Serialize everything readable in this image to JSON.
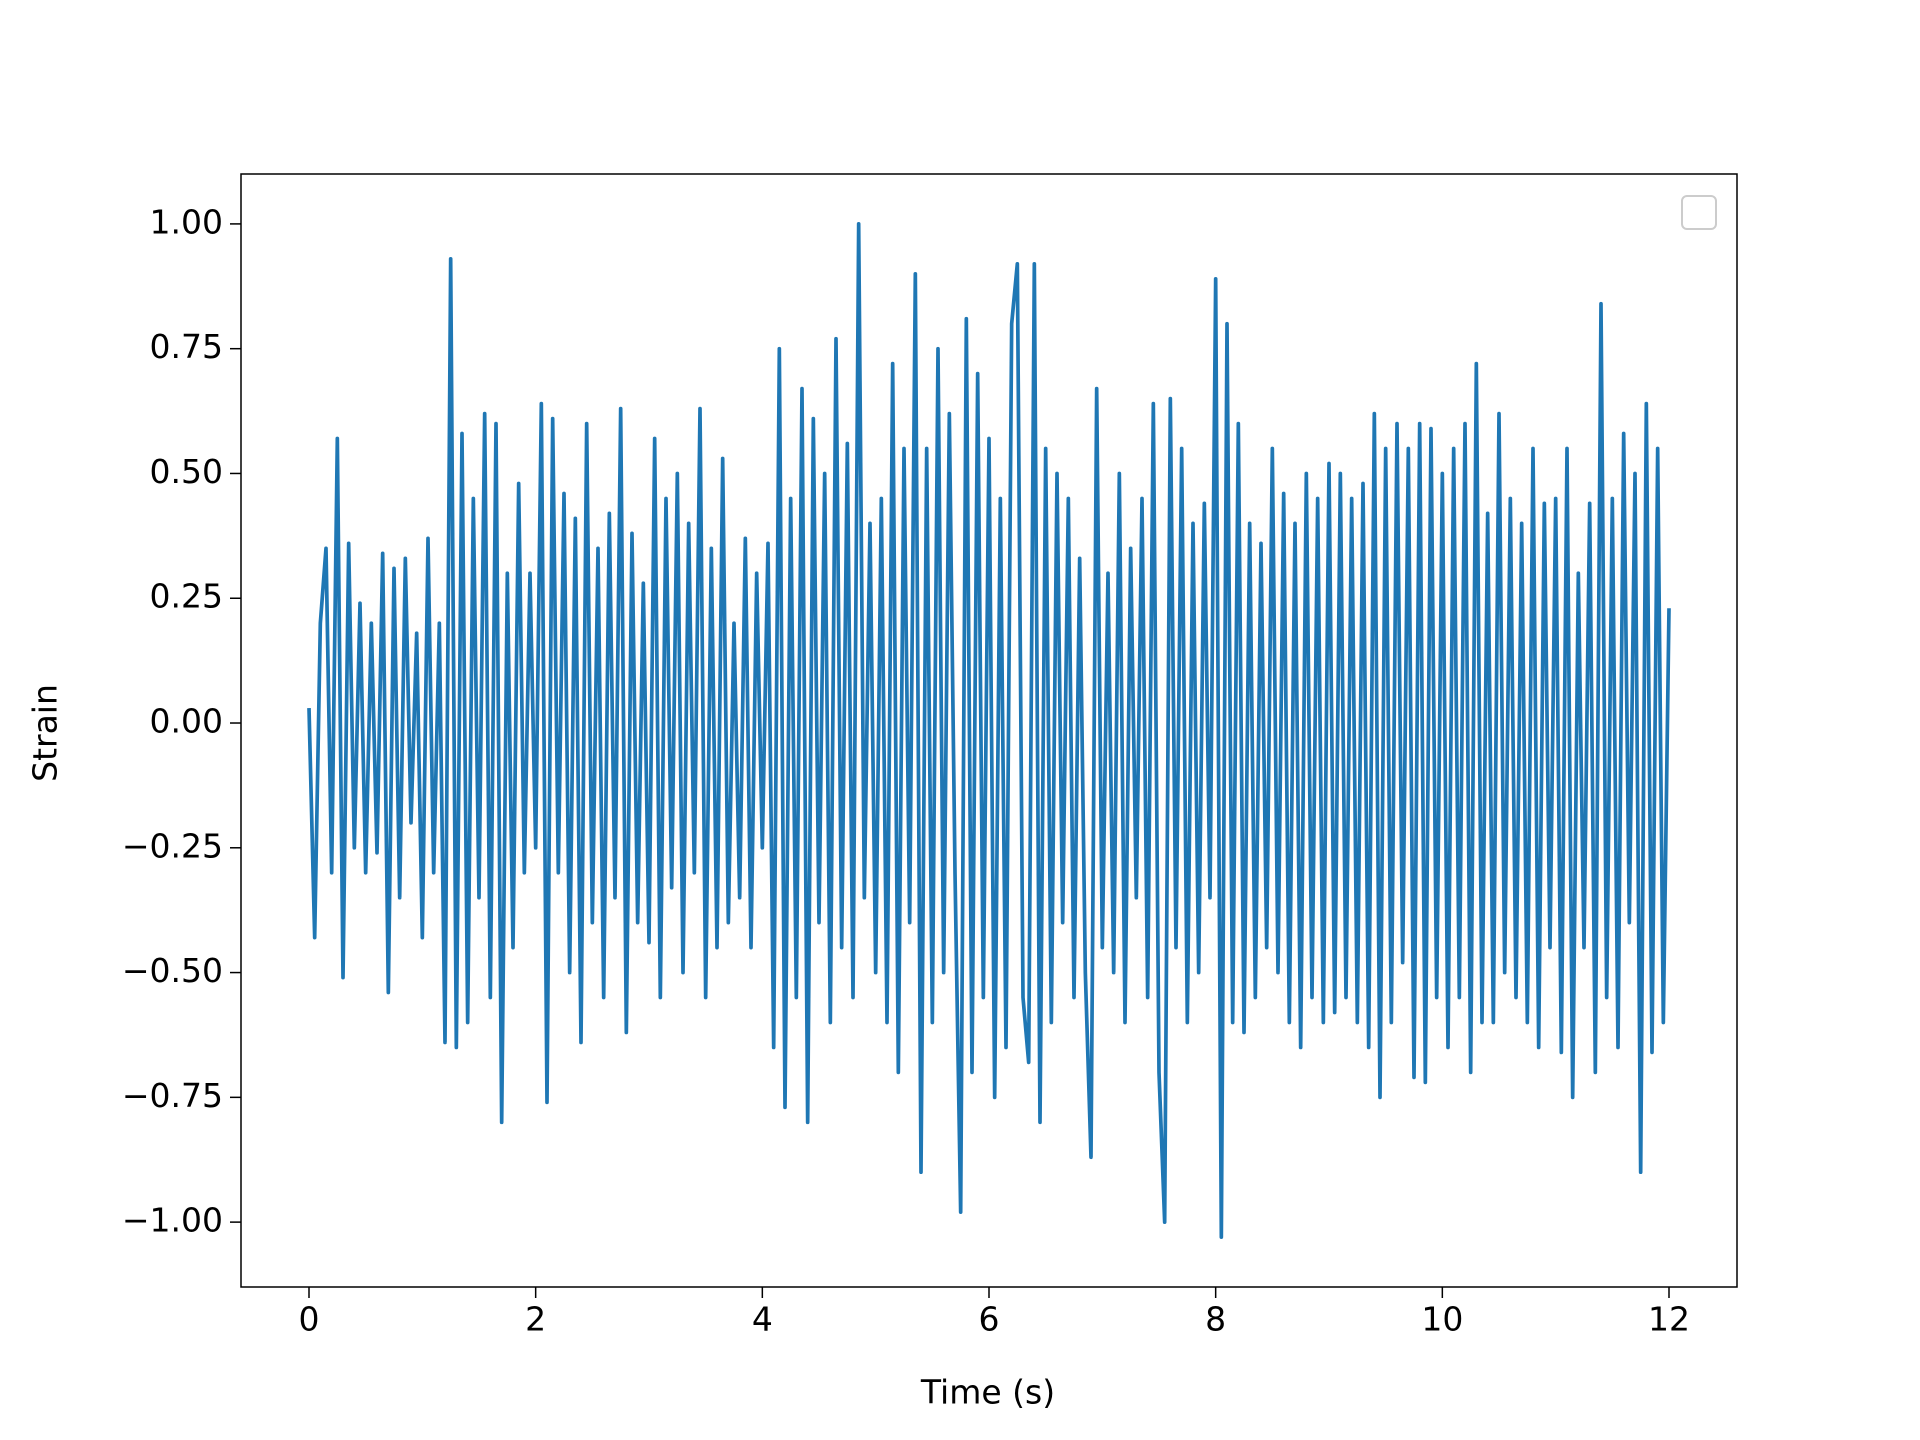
{
  "chart_data": {
    "type": "line",
    "xlabel": "Time (s)",
    "ylabel": "Strain",
    "xlim": [
      -0.6,
      12.6
    ],
    "ylim": [
      -1.13,
      1.1
    ],
    "xticks": [
      0,
      2,
      4,
      6,
      8,
      10,
      12
    ],
    "yticks": [
      {
        "value": -1,
        "label": "−1.00"
      },
      {
        "value": -0.75,
        "label": "−0.75"
      },
      {
        "value": -0.5,
        "label": "−0.50"
      },
      {
        "value": -0.25,
        "label": "−0.25"
      },
      {
        "value": 0,
        "label": "0.00"
      },
      {
        "value": 0.25,
        "label": "0.25"
      },
      {
        "value": 0.5,
        "label": "0.50"
      },
      {
        "value": 0.75,
        "label": "0.75"
      },
      {
        "value": 1,
        "label": "1.00"
      }
    ],
    "legend": "upper right",
    "x": [
      0,
      0.05,
      0.1,
      0.15,
      0.2,
      0.25,
      0.3,
      0.35,
      0.4,
      0.45,
      0.5,
      0.55,
      0.6,
      0.65,
      0.7,
      0.75,
      0.8,
      0.85,
      0.9,
      0.95,
      1,
      1.05,
      1.1,
      1.15,
      1.2,
      1.25,
      1.3,
      1.35,
      1.4,
      1.45,
      1.5,
      1.55,
      1.6,
      1.65,
      1.7,
      1.75,
      1.8,
      1.85,
      1.9,
      1.95,
      2,
      2.05,
      2.1,
      2.15,
      2.2,
      2.25,
      2.3,
      2.35,
      2.4,
      2.45,
      2.5,
      2.55,
      2.6,
      2.65,
      2.7,
      2.75,
      2.8,
      2.85,
      2.9,
      2.95,
      3,
      3.05,
      3.1,
      3.15,
      3.2,
      3.25,
      3.3,
      3.35,
      3.4,
      3.45,
      3.5,
      3.55,
      3.6,
      3.65,
      3.7,
      3.75,
      3.8,
      3.85,
      3.9,
      3.95,
      4,
      4.05,
      4.1,
      4.15,
      4.2,
      4.25,
      4.3,
      4.35,
      4.4,
      4.45,
      4.5,
      4.55,
      4.6,
      4.65,
      4.7,
      4.75,
      4.8,
      4.85,
      4.9,
      4.95,
      5,
      5.05,
      5.1,
      5.15,
      5.2,
      5.25,
      5.3,
      5.35,
      5.4,
      5.45,
      5.5,
      5.55,
      5.6,
      5.65,
      5.7,
      5.75,
      5.8,
      5.85,
      5.9,
      5.95,
      6,
      6.05,
      6.1,
      6.15,
      6.2,
      6.25,
      6.3,
      6.35,
      6.4,
      6.45,
      6.5,
      6.55,
      6.6,
      6.65,
      6.7,
      6.75,
      6.8,
      6.85,
      6.9,
      6.95,
      7,
      7.05,
      7.1,
      7.15,
      7.2,
      7.25,
      7.3,
      7.35,
      7.4,
      7.45,
      7.5,
      7.55,
      7.6,
      7.65,
      7.7,
      7.75,
      7.8,
      7.85,
      7.9,
      7.95,
      8,
      8.05,
      8.1,
      8.15,
      8.2,
      8.25,
      8.3,
      8.35,
      8.4,
      8.45,
      8.5,
      8.55,
      8.6,
      8.65,
      8.7,
      8.75,
      8.8,
      8.85,
      8.9,
      8.95,
      9,
      9.05,
      9.1,
      9.15,
      9.2,
      9.25,
      9.3,
      9.35,
      9.4,
      9.45,
      9.5,
      9.55,
      9.6,
      9.65,
      9.7,
      9.75,
      9.8,
      9.85,
      9.9,
      9.95,
      10,
      10.05,
      10.1,
      10.15,
      10.2,
      10.25,
      10.3,
      10.35,
      10.4,
      10.45,
      10.5,
      10.55,
      10.6,
      10.65,
      10.7,
      10.75,
      10.8,
      10.85,
      10.9,
      10.95,
      11,
      11.05,
      11.1,
      11.15,
      11.2,
      11.25,
      11.3,
      11.35,
      11.4,
      11.45,
      11.5,
      11.55,
      11.6,
      11.65,
      11.7,
      11.75,
      11.8,
      11.85,
      11.9,
      11.95,
      12
    ],
    "series": [
      {
        "color": "#1f77b4",
        "values": [
          0.03,
          -0.43,
          0.2,
          0.35,
          -0.3,
          0.57,
          -0.51,
          0.36,
          -0.25,
          0.24,
          -0.3,
          0.2,
          -0.26,
          0.34,
          -0.54,
          0.31,
          -0.35,
          0.33,
          -0.2,
          0.18,
          -0.43,
          0.37,
          -0.3,
          0.2,
          -0.64,
          0.93,
          -0.65,
          0.58,
          -0.6,
          0.45,
          -0.35,
          0.62,
          -0.55,
          0.6,
          -0.8,
          0.3,
          -0.45,
          0.48,
          -0.3,
          0.3,
          -0.25,
          0.64,
          -0.76,
          0.61,
          -0.3,
          0.46,
          -0.5,
          0.41,
          -0.64,
          0.6,
          -0.4,
          0.35,
          -0.55,
          0.42,
          -0.35,
          0.63,
          -0.62,
          0.38,
          -0.4,
          0.28,
          -0.44,
          0.57,
          -0.55,
          0.45,
          -0.33,
          0.5,
          -0.5,
          0.4,
          -0.3,
          0.63,
          -0.55,
          0.35,
          -0.45,
          0.53,
          -0.4,
          0.2,
          -0.35,
          0.37,
          -0.45,
          0.3,
          -0.25,
          0.36,
          -0.65,
          0.75,
          -0.77,
          0.45,
          -0.55,
          0.67,
          -0.8,
          0.61,
          -0.4,
          0.5,
          -0.6,
          0.77,
          -0.45,
          0.56,
          -0.55,
          1.0,
          -0.35,
          0.4,
          -0.5,
          0.45,
          -0.6,
          0.72,
          -0.7,
          0.55,
          -0.4,
          0.9,
          -0.9,
          0.55,
          -0.6,
          0.75,
          -0.5,
          0.62,
          -0.3,
          -0.98,
          0.81,
          -0.7,
          0.7,
          -0.55,
          0.57,
          -0.75,
          0.45,
          -0.65,
          0.8,
          0.92,
          -0.55,
          -0.68,
          0.92,
          -0.8,
          0.55,
          -0.6,
          0.5,
          -0.4,
          0.45,
          -0.55,
          0.33,
          -0.5,
          -0.87,
          0.67,
          -0.45,
          0.3,
          -0.5,
          0.5,
          -0.6,
          0.35,
          -0.35,
          0.45,
          -0.55,
          0.64,
          -0.7,
          -1.0,
          0.65,
          -0.45,
          0.55,
          -0.6,
          0.4,
          -0.5,
          0.44,
          -0.35,
          0.89,
          -1.03,
          0.8,
          -0.6,
          0.6,
          -0.62,
          0.4,
          -0.55,
          0.36,
          -0.45,
          0.55,
          -0.5,
          0.46,
          -0.6,
          0.4,
          -0.65,
          0.5,
          -0.55,
          0.45,
          -0.6,
          0.52,
          -0.58,
          0.5,
          -0.55,
          0.45,
          -0.6,
          0.48,
          -0.65,
          0.62,
          -0.75,
          0.55,
          -0.6,
          0.6,
          -0.48,
          0.55,
          -0.71,
          0.6,
          -0.72,
          0.59,
          -0.55,
          0.5,
          -0.65,
          0.55,
          -0.55,
          0.6,
          -0.7,
          0.72,
          -0.6,
          0.42,
          -0.6,
          0.62,
          -0.5,
          0.45,
          -0.55,
          0.4,
          -0.6,
          0.55,
          -0.65,
          0.44,
          -0.45,
          0.45,
          -0.66,
          0.55,
          -0.75,
          0.3,
          -0.45,
          0.44,
          -0.7,
          0.84,
          -0.55,
          0.45,
          -0.65,
          0.58,
          -0.4,
          0.5,
          -0.9,
          0.64,
          -0.66,
          0.55,
          -0.6,
          0.23
        ]
      }
    ]
  }
}
